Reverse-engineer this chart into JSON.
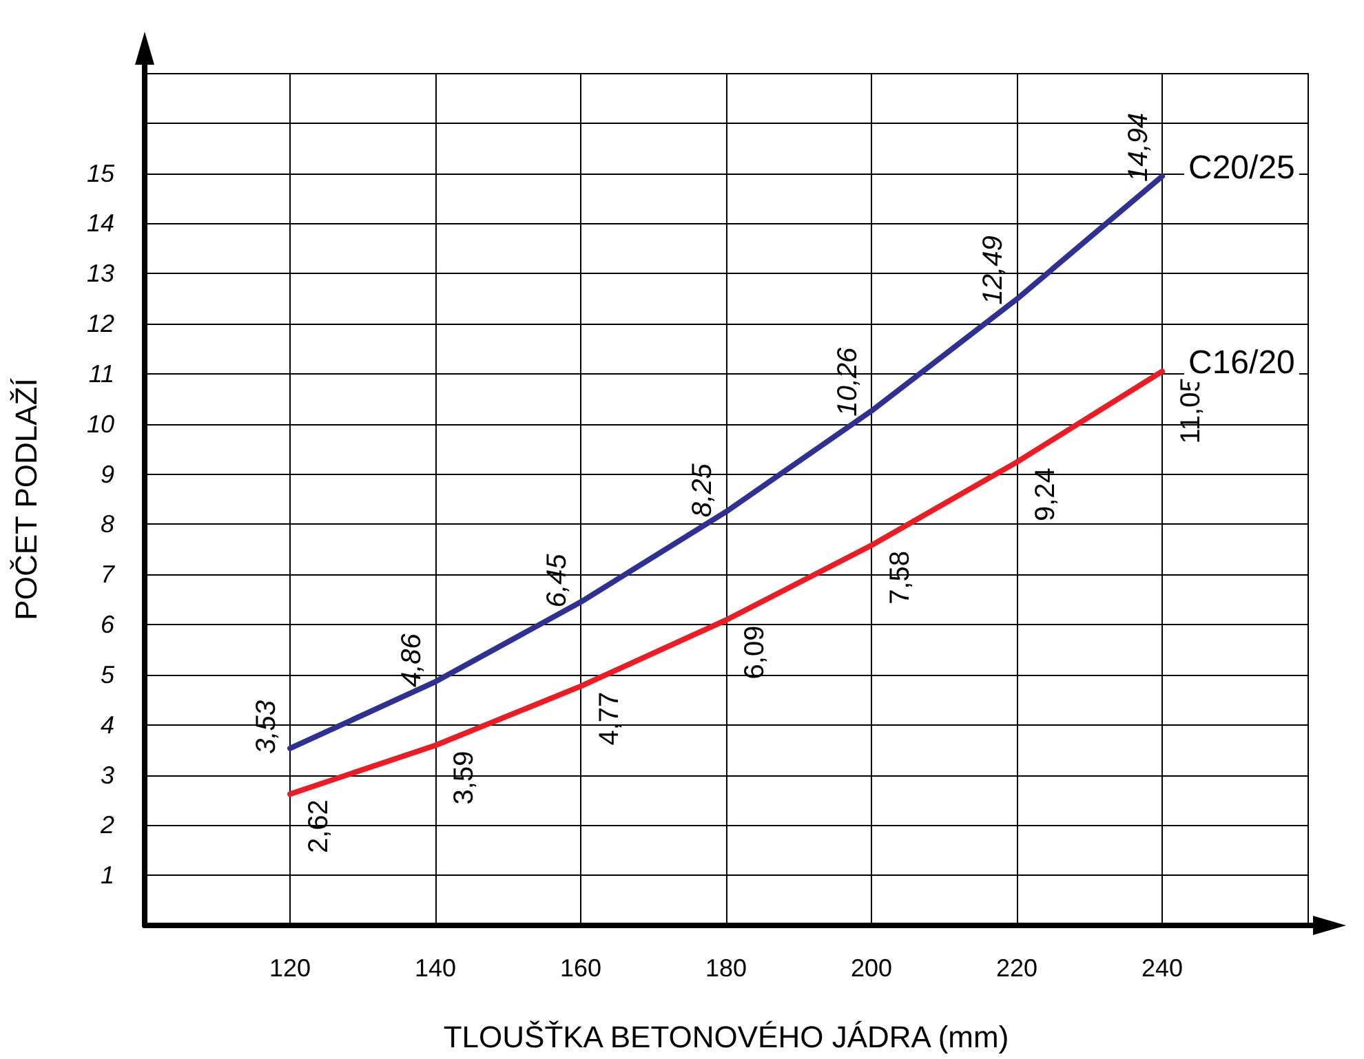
{
  "chart_data": {
    "type": "line",
    "xlabel": "TLOUŠŤKA BETONOVÉHO JÁDRA (mm)",
    "ylabel": "POČET PODLAŽÍ",
    "x": [
      120,
      140,
      160,
      180,
      200,
      220,
      240
    ],
    "series": [
      {
        "name": "C20/25",
        "color": "#2e3192",
        "values": [
          3.53,
          4.86,
          6.45,
          8.25,
          10.26,
          12.49,
          14.94
        ],
        "value_labels": [
          "3,53",
          "4,86",
          "6,45",
          "8,25",
          "10,26",
          "12,49",
          "14,94"
        ]
      },
      {
        "name": "C16/20",
        "color": "#ed1c24",
        "values": [
          2.62,
          3.59,
          4.77,
          6.09,
          7.58,
          9.24,
          11.05
        ],
        "value_labels": [
          "2,62",
          "3,59",
          "4,77",
          "6,09",
          "7,58",
          "9,24",
          "11,05"
        ]
      }
    ],
    "xlim": [
      100,
      260
    ],
    "xticks": [
      120,
      140,
      160,
      180,
      200,
      220,
      240,
      {
        "value": 260,
        "label": null
      }
    ],
    "ylim": [
      0,
      17
    ],
    "yticks": [
      1,
      2,
      3,
      4,
      5,
      6,
      7,
      8,
      9,
      10,
      11,
      12,
      13,
      14,
      15,
      {
        "value": 16,
        "label": null
      },
      {
        "value": 17,
        "label": null
      }
    ],
    "grid": true,
    "legend": false,
    "marker": "none",
    "line_style": "solid"
  }
}
